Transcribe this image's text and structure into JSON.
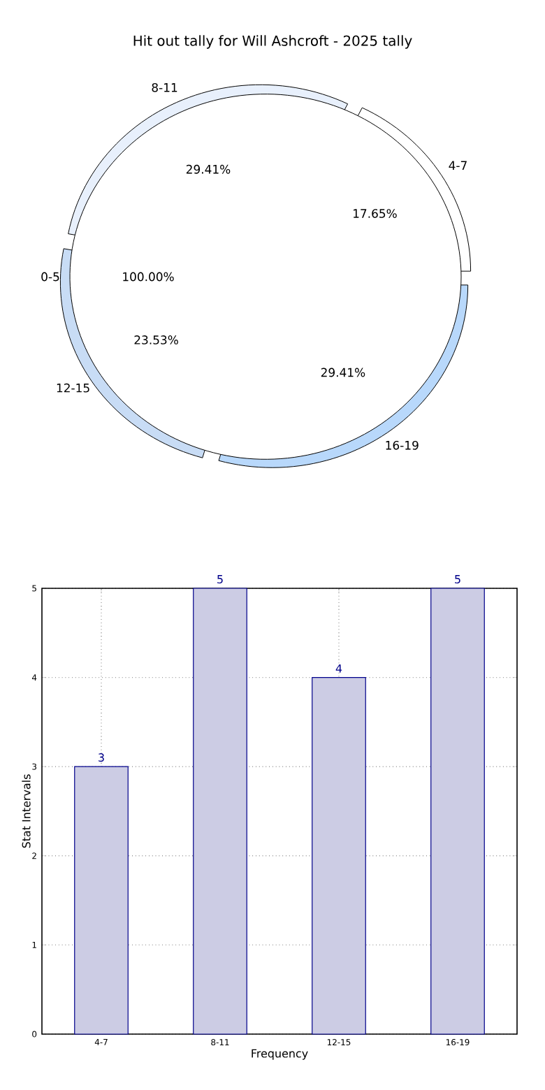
{
  "chart_data": [
    {
      "type": "pie",
      "title": "Hit out tally for Will Ashcroft - 2025 tally",
      "categories": [
        "4-7",
        "8-11",
        "12-15",
        "16-19"
      ],
      "values": [
        17.65,
        29.41,
        23.53,
        29.41
      ],
      "value_labels": [
        "17.65%",
        "29.41%",
        "23.53%",
        "29.41%"
      ],
      "colors": [
        "#ffffff",
        "#e8f0fc",
        "#c8dcf5",
        "#b8d8fb"
      ]
    },
    {
      "type": "pie",
      "categories": [
        "0-5"
      ],
      "values": [
        100
      ],
      "value_labels": [
        "100.00%"
      ],
      "colors": [
        "#ffffff"
      ]
    },
    {
      "type": "bar",
      "categories": [
        "4-7",
        "8-11",
        "12-15",
        "16-19"
      ],
      "values": [
        3,
        5,
        4,
        5
      ],
      "color": "#cccce4",
      "xlabel": "Frequency",
      "ylabel": "Stat Intervals",
      "ylim": [
        0,
        5
      ],
      "yticks": [
        0,
        1,
        2,
        3,
        4,
        5
      ],
      "grid": true,
      "data_labels": true
    }
  ]
}
